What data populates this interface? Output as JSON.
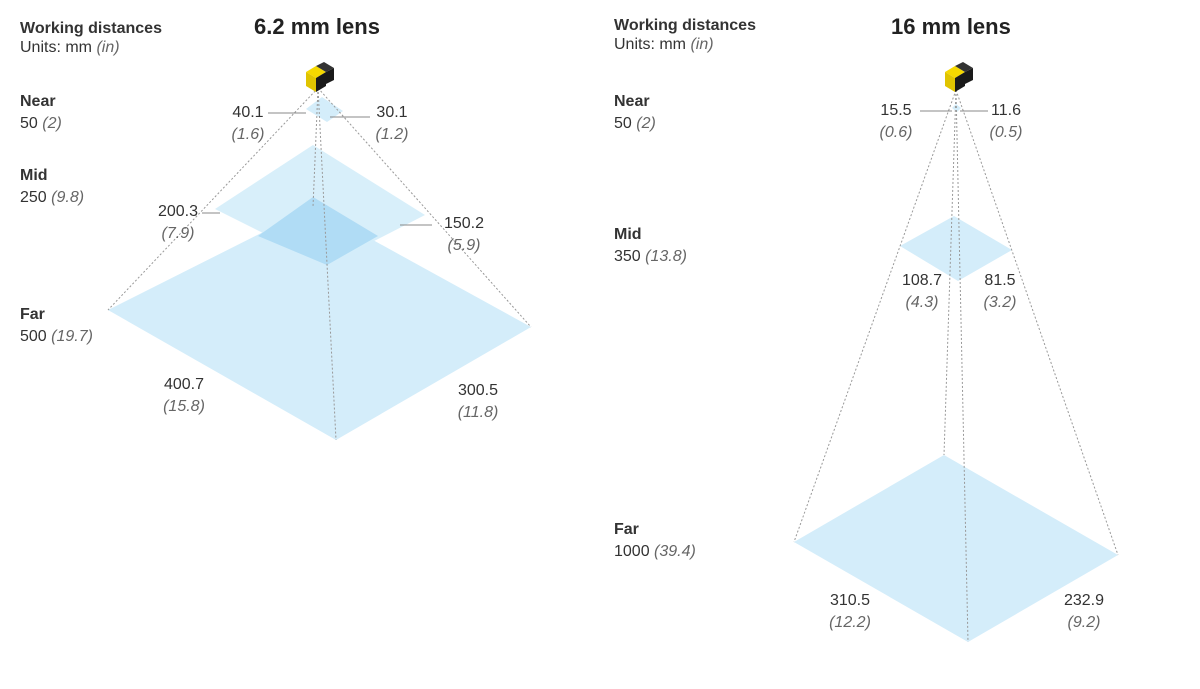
{
  "panels": [
    {
      "header_title": "Working distances",
      "header_units_prefix": "Units: mm",
      "header_units_in": "(in)",
      "lens_title": "6.2 mm lens",
      "distances": [
        {
          "name": "Near",
          "mm": "50",
          "in": "(2)"
        },
        {
          "name": "Mid",
          "mm": "250",
          "in": "(9.8)"
        },
        {
          "name": "Far",
          "mm": "500",
          "in": "(19.7)"
        }
      ],
      "planes": [
        {
          "left_mm": "40.1",
          "left_in": "(1.6)",
          "right_mm": "30.1",
          "right_in": "(1.2)"
        },
        {
          "left_mm": "200.3",
          "left_in": "(7.9)",
          "right_mm": "150.2",
          "right_in": "(5.9)"
        },
        {
          "left_mm": "400.7",
          "left_in": "(15.8)",
          "right_mm": "300.5",
          "right_in": "(11.8)"
        }
      ]
    },
    {
      "header_title": "Working distances",
      "header_units_prefix": "Units: mm",
      "header_units_in": "(in)",
      "lens_title": "16 mm lens",
      "distances": [
        {
          "name": "Near",
          "mm": "50",
          "in": "(2)"
        },
        {
          "name": "Mid",
          "mm": "350",
          "in": "(13.8)"
        },
        {
          "name": "Far",
          "mm": "1000",
          "in": "(39.4)"
        }
      ],
      "planes": [
        {
          "left_mm": "15.5",
          "left_in": "(0.6)",
          "right_mm": "11.6",
          "right_in": "(0.5)"
        },
        {
          "left_mm": "108.7",
          "left_in": "(4.3)",
          "right_mm": "81.5",
          "right_in": "(3.2)"
        },
        {
          "left_mm": "310.5",
          "left_in": "(12.2)",
          "right_mm": "232.9",
          "right_in": "(9.2)"
        }
      ]
    }
  ],
  "colors": {
    "plane_fill": "#d4edfa",
    "plane_overlap": "#b0dcf5",
    "camera_yellow": "#f5d800",
    "camera_black": "#1a1a1a",
    "guide_line": "#999999"
  }
}
